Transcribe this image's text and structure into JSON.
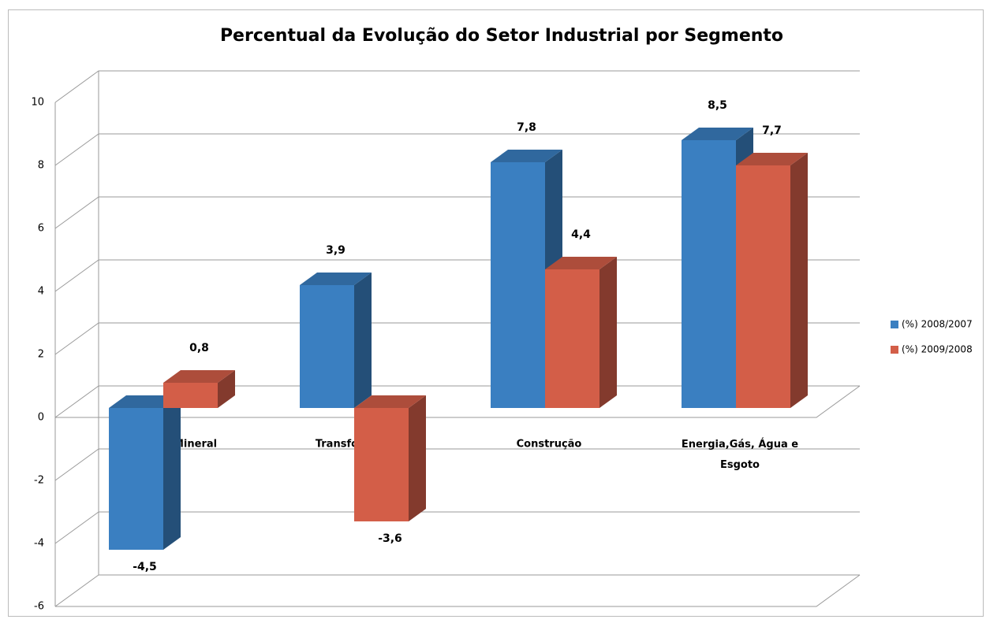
{
  "chart_data": {
    "type": "bar3d",
    "title": "Percentual da Evolução do Setor Industrial  por Segmento",
    "categories": [
      "Extrativa Mineral",
      "Transformação",
      "Construção",
      "Energia,Gás,  Água  e Esgoto"
    ],
    "series": [
      {
        "name": "(%) 2008/2007",
        "color": "#3a7fc1",
        "values": [
          -4.5,
          3.9,
          7.8,
          8.5
        ],
        "value_labels": [
          "-4,5",
          "3,9",
          "7,8",
          "8,5"
        ]
      },
      {
        "name": "(%) 2009/2008",
        "color": "#d35e48",
        "values": [
          0.8,
          -3.6,
          4.4,
          7.7
        ],
        "value_labels": [
          "0,8",
          "-3,6",
          "4,4",
          "7,7"
        ]
      }
    ],
    "ylim": [
      -6,
      10
    ],
    "yticks": [
      -6,
      -4,
      -2,
      0,
      2,
      4,
      6,
      8,
      10
    ],
    "grid": true,
    "legend": "right"
  }
}
